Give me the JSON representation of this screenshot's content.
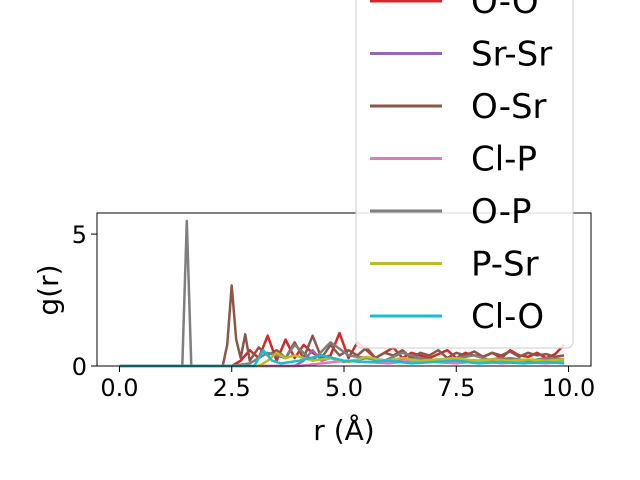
{
  "chart_data": {
    "type": "line",
    "xlabel": "r (Å)",
    "ylabel": "g(r)",
    "xlim": [
      -0.5,
      10.5
    ],
    "ylim": [
      0,
      5.8
    ],
    "x_ticks": [
      {
        "value": 0.0,
        "label": "0.0"
      },
      {
        "value": 2.5,
        "label": "2.5"
      },
      {
        "value": 5.0,
        "label": "5.0"
      },
      {
        "value": 7.5,
        "label": "7.5"
      },
      {
        "value": 10.0,
        "label": "10.0"
      }
    ],
    "y_ticks": [
      {
        "value": 0,
        "label": "0"
      },
      {
        "value": 5,
        "label": "5"
      }
    ],
    "legend_position": "upper right (overflowing top)",
    "grid": false,
    "series": [
      {
        "name": "O-O",
        "color": "#d62728",
        "x": [
          0,
          2.3,
          2.5,
          2.7,
          2.9,
          3.1,
          3.3,
          3.5,
          3.7,
          3.9,
          4.1,
          4.3,
          4.5,
          4.7,
          4.9,
          5.1,
          5.3,
          5.5,
          5.7,
          5.9,
          6.1,
          6.3,
          6.5,
          6.7,
          6.9,
          7.1,
          7.3,
          7.5,
          7.7,
          7.9,
          8.1,
          8.3,
          8.5,
          8.7,
          8.9,
          9.1,
          9.3,
          9.5,
          9.7,
          9.9
        ],
        "y": [
          0,
          0,
          0,
          0.2,
          0.6,
          0.3,
          1.15,
          0.2,
          1.0,
          0.3,
          0.8,
          0.5,
          0.3,
          0.4,
          1.25,
          0.3,
          0.9,
          0.6,
          0.3,
          0.5,
          0.7,
          0.3,
          0.5,
          0.4,
          0.3,
          0.45,
          0.6,
          0.3,
          0.5,
          0.4,
          0.35,
          0.5,
          0.3,
          0.6,
          0.4,
          0.35,
          0.5,
          0.3,
          0.45,
          0.8
        ]
      },
      {
        "name": "Sr-Sr",
        "color": "#9467bd",
        "x": [
          0,
          3.9,
          4.1,
          4.3,
          4.5,
          4.7,
          5.0,
          5.5,
          6.0,
          6.5,
          7.0,
          7.5,
          8.0,
          8.5,
          9.0,
          9.5,
          9.9
        ],
        "y": [
          0,
          0,
          0.2,
          0.6,
          0.2,
          0.3,
          0.15,
          0.3,
          0.2,
          0.3,
          0.2,
          0.25,
          0.2,
          0.3,
          0.2,
          0.25,
          0.2
        ]
      },
      {
        "name": "O-Sr",
        "color": "#8c564b",
        "x": [
          0,
          2.3,
          2.4,
          2.5,
          2.6,
          2.7,
          2.8,
          2.9,
          3.1,
          3.3,
          3.5,
          3.7,
          3.9,
          4.1,
          4.3,
          4.5,
          4.7,
          4.9,
          5.1,
          5.3,
          5.5,
          5.7,
          5.9,
          6.1,
          6.3,
          6.5,
          6.7,
          6.9,
          7.1,
          7.3,
          7.5,
          7.7,
          7.9,
          8.1,
          8.3,
          8.5,
          8.7,
          8.9,
          9.1,
          9.3,
          9.5,
          9.7,
          9.9
        ],
        "y": [
          0,
          0,
          0.8,
          3.05,
          1.0,
          0.3,
          1.2,
          0.2,
          0.7,
          0.4,
          0.6,
          0.3,
          0.9,
          0.3,
          1.15,
          0.3,
          0.8,
          0.4,
          0.6,
          0.4,
          0.7,
          0.3,
          0.5,
          0.4,
          0.6,
          0.3,
          0.5,
          0.4,
          0.6,
          0.3,
          0.5,
          0.4,
          0.55,
          0.35,
          0.5,
          0.4,
          0.55,
          0.35,
          0.5,
          0.4,
          0.45,
          0.35,
          0.4
        ]
      },
      {
        "name": "Cl-P",
        "color": "#e377c2",
        "x": [
          0,
          4.0,
          4.5,
          5.0,
          5.5,
          6.0,
          6.5,
          7.0,
          7.5,
          8.0,
          8.5,
          9.0,
          9.5,
          9.9
        ],
        "y": [
          0,
          0,
          0.1,
          0.2,
          0.15,
          0.1,
          0.2,
          0.15,
          0.1,
          0.2,
          0.1,
          0.15,
          0.1,
          0.15
        ]
      },
      {
        "name": "O-P",
        "color": "#7f7f7f",
        "x": [
          0,
          1.4,
          1.5,
          1.6,
          2.5,
          2.9,
          3.3,
          3.7,
          3.9,
          4.3,
          4.7,
          5.1,
          5.5,
          5.9,
          6.3,
          6.7,
          7.1,
          7.5,
          7.9,
          8.3,
          8.7,
          9.1,
          9.5,
          9.9
        ],
        "y": [
          0,
          0,
          5.5,
          0,
          0,
          0.1,
          0.5,
          0.3,
          0.8,
          0.2,
          0.9,
          0.4,
          0.3,
          0.2,
          0.5,
          0.3,
          0.2,
          0.3,
          0.4,
          0.2,
          0.3,
          0.2,
          0.3,
          0.25
        ]
      },
      {
        "name": "P-Sr",
        "color": "#bcbd22",
        "x": [
          0,
          3.1,
          3.3,
          3.5,
          3.7,
          3.9,
          4.3,
          4.7,
          5.1,
          5.5,
          5.9,
          6.3,
          6.7,
          7.1,
          7.5,
          7.9,
          8.3,
          8.7,
          9.1,
          9.5,
          9.9
        ],
        "y": [
          0,
          0,
          0.2,
          0.5,
          0.3,
          0.4,
          0.2,
          0.3,
          0.15,
          0.35,
          0.2,
          0.3,
          0.2,
          0.25,
          0.3,
          0.2,
          0.25,
          0.2,
          0.25,
          0.2,
          0.25
        ]
      },
      {
        "name": "Cl-O",
        "color": "#17becf",
        "x": [
          0,
          3.0,
          3.2,
          3.4,
          3.6,
          4.0,
          4.5,
          5.0,
          5.5,
          6.0,
          6.5,
          7.0,
          7.5,
          8.0,
          8.5,
          9.0,
          9.5,
          9.9
        ],
        "y": [
          0,
          0,
          0.6,
          0.2,
          0.1,
          0.2,
          0.4,
          0.2,
          0.15,
          0.2,
          0.1,
          0.15,
          0.2,
          0.1,
          0.15,
          0.1,
          0.15,
          0.1
        ]
      }
    ]
  }
}
